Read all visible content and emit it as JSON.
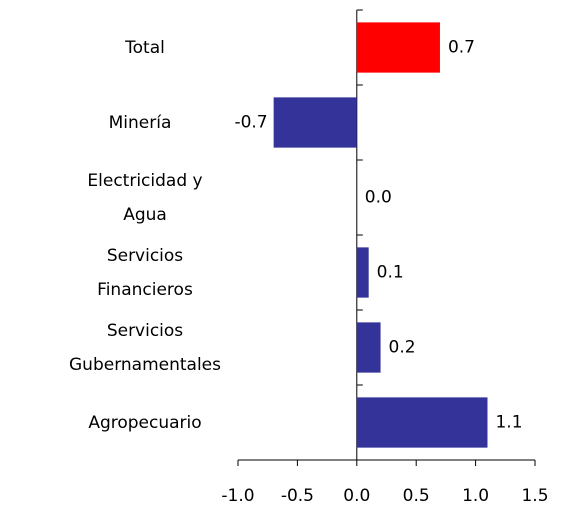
{
  "chart_data": {
    "type": "hbar",
    "categories": [
      "Total",
      "Minería",
      "Electricidad y Agua",
      "Servicios Financieros",
      "Servicios Gubernamentales",
      "Agropecuario"
    ],
    "values": [
      0.7,
      -0.7,
      0.0,
      0.1,
      0.2,
      1.1
    ],
    "value_labels": [
      "0.7",
      "-0.7",
      "0.0",
      "0.1",
      "0.2",
      "1.1"
    ],
    "colors": [
      "#ff0000",
      "#333399",
      "#333399",
      "#333399",
      "#333399",
      "#333399"
    ],
    "xlim": [
      -1.0,
      1.5
    ],
    "xticks": [
      {
        "value": -1.0,
        "label": "-1.0"
      },
      {
        "value": -0.5,
        "label": "-0.5"
      },
      {
        "value": 0.0,
        "label": "0.0"
      },
      {
        "value": 0.5,
        "label": "0.5"
      },
      {
        "value": 1.0,
        "label": "1.0"
      },
      1.5
    ]
  }
}
